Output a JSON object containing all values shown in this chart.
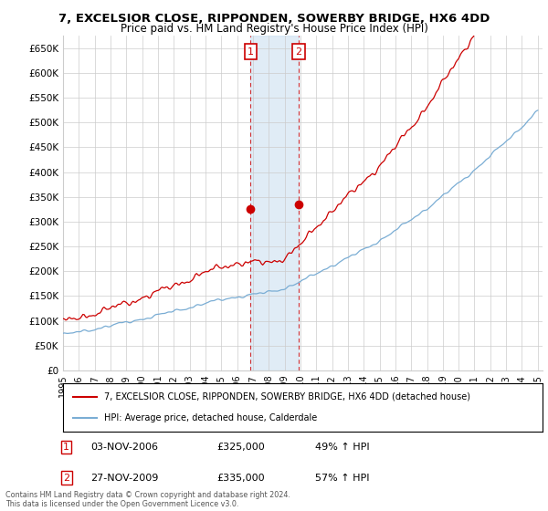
{
  "title": "7, EXCELSIOR CLOSE, RIPPONDEN, SOWERBY BRIDGE, HX6 4DD",
  "subtitle": "Price paid vs. HM Land Registry's House Price Index (HPI)",
  "ylim": [
    0,
    675000
  ],
  "yticks": [
    0,
    50000,
    100000,
    150000,
    200000,
    250000,
    300000,
    350000,
    400000,
    450000,
    500000,
    550000,
    600000,
    650000
  ],
  "ytick_labels": [
    "£0",
    "£50K",
    "£100K",
    "£150K",
    "£200K",
    "£250K",
    "£300K",
    "£350K",
    "£400K",
    "£450K",
    "£500K",
    "£550K",
    "£600K",
    "£650K"
  ],
  "sale1_date": 2006.84,
  "sale1_price": 325000,
  "sale2_date": 2009.9,
  "sale2_price": 335000,
  "property_color": "#cc0000",
  "hpi_color": "#7aadd4",
  "background_color": "#ffffff",
  "grid_color": "#cccccc",
  "legend_label_property": "7, EXCELSIOR CLOSE, RIPPONDEN, SOWERBY BRIDGE, HX6 4DD (detached house)",
  "legend_label_hpi": "HPI: Average price, detached house, Calderdale",
  "table_row1": [
    "1",
    "03-NOV-2006",
    "£325,000",
    "49% ↑ HPI"
  ],
  "table_row2": [
    "2",
    "27-NOV-2009",
    "£335,000",
    "57% ↑ HPI"
  ],
  "footnote": "Contains HM Land Registry data © Crown copyright and database right 2024.\nThis data is licensed under the Open Government Licence v3.0."
}
